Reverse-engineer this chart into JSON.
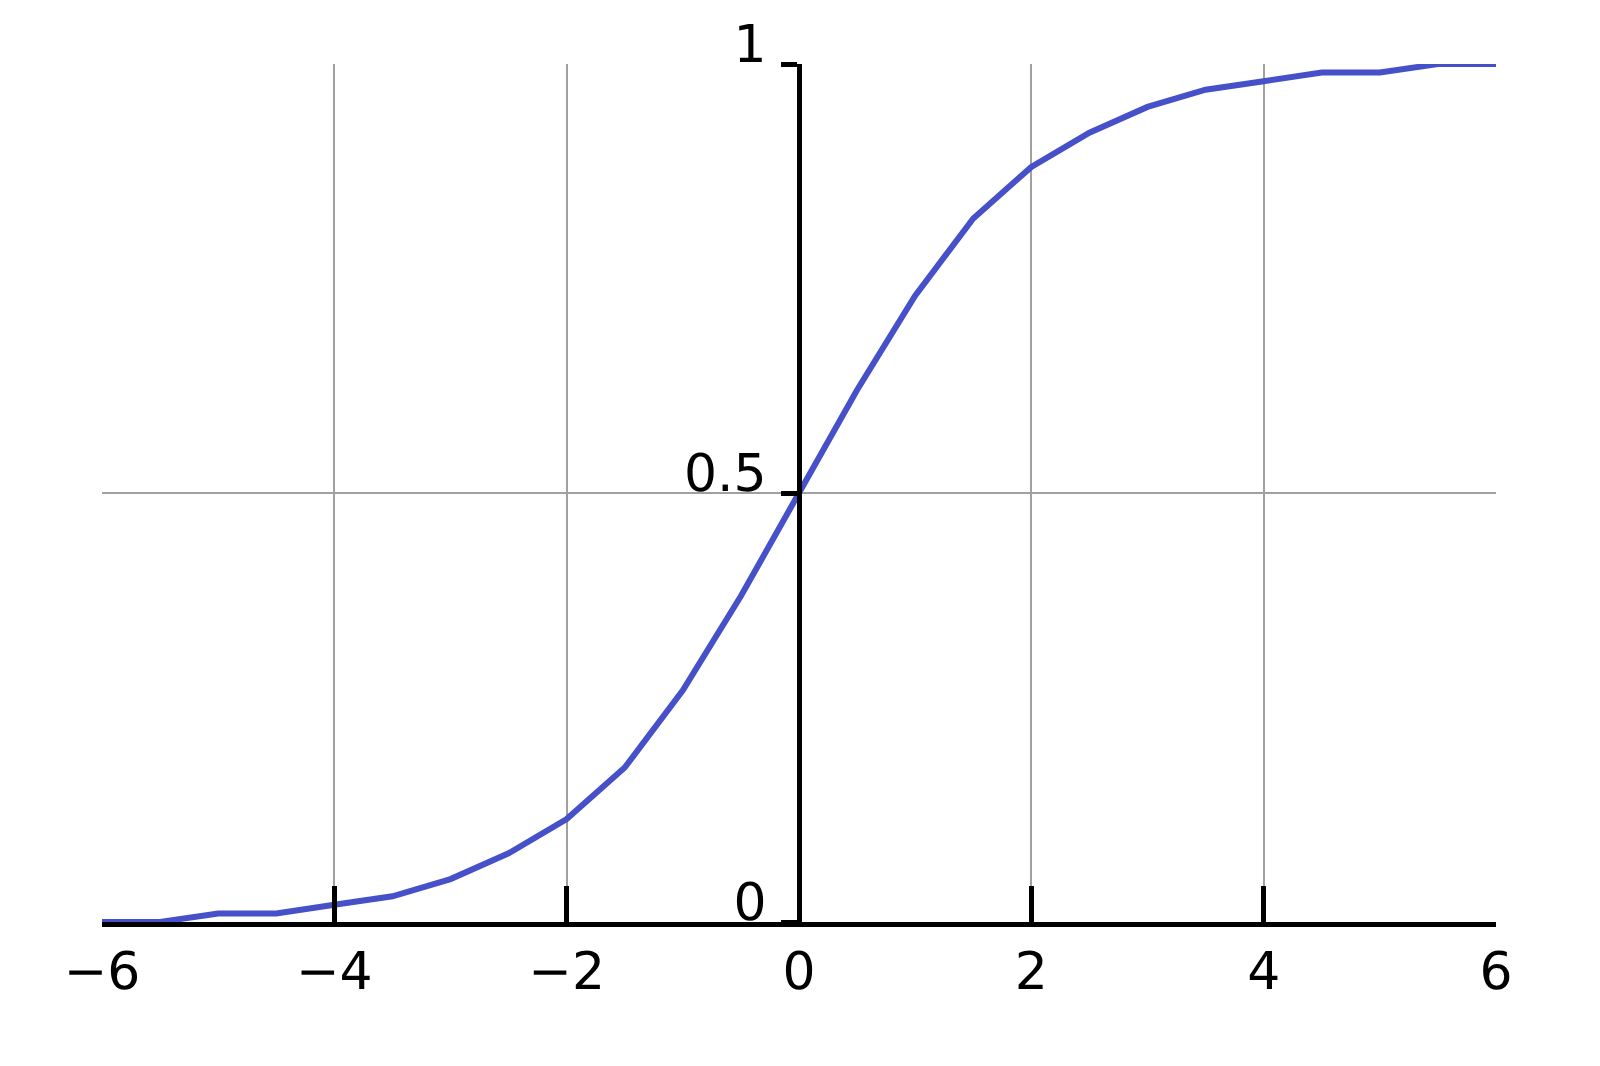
{
  "chart_data": {
    "type": "line",
    "x": [
      -6,
      -5.5,
      -5,
      -4.5,
      -4,
      -3.5,
      -3,
      -2.5,
      -2,
      -1.5,
      -1,
      -0.5,
      0,
      0.5,
      1,
      1.5,
      2,
      2.5,
      3,
      3.5,
      4,
      4.5,
      5,
      5.5,
      6
    ],
    "series": [
      {
        "color": "#4650c8",
        "values": [
          0.0,
          0.0,
          0.01,
          0.01,
          0.02,
          0.03,
          0.05,
          0.08,
          0.12,
          0.18,
          0.27,
          0.38,
          0.5,
          0.62,
          0.73,
          0.82,
          0.88,
          0.92,
          0.95,
          0.97,
          0.98,
          0.99,
          0.99,
          1.0,
          1.0
        ]
      }
    ],
    "xlim": [
      -6,
      6
    ],
    "xticks": [
      {
        "value": -6,
        "label": "−6"
      },
      {
        "value": -4,
        "label": "−4"
      },
      {
        "value": -2,
        "label": "−2"
      },
      0,
      2,
      4,
      6
    ],
    "ylim": [
      0,
      1
    ],
    "yticks": [
      0,
      0.5,
      1
    ],
    "grid": true,
    "legend": false,
    "marker": "none",
    "line_style": "solid"
  }
}
